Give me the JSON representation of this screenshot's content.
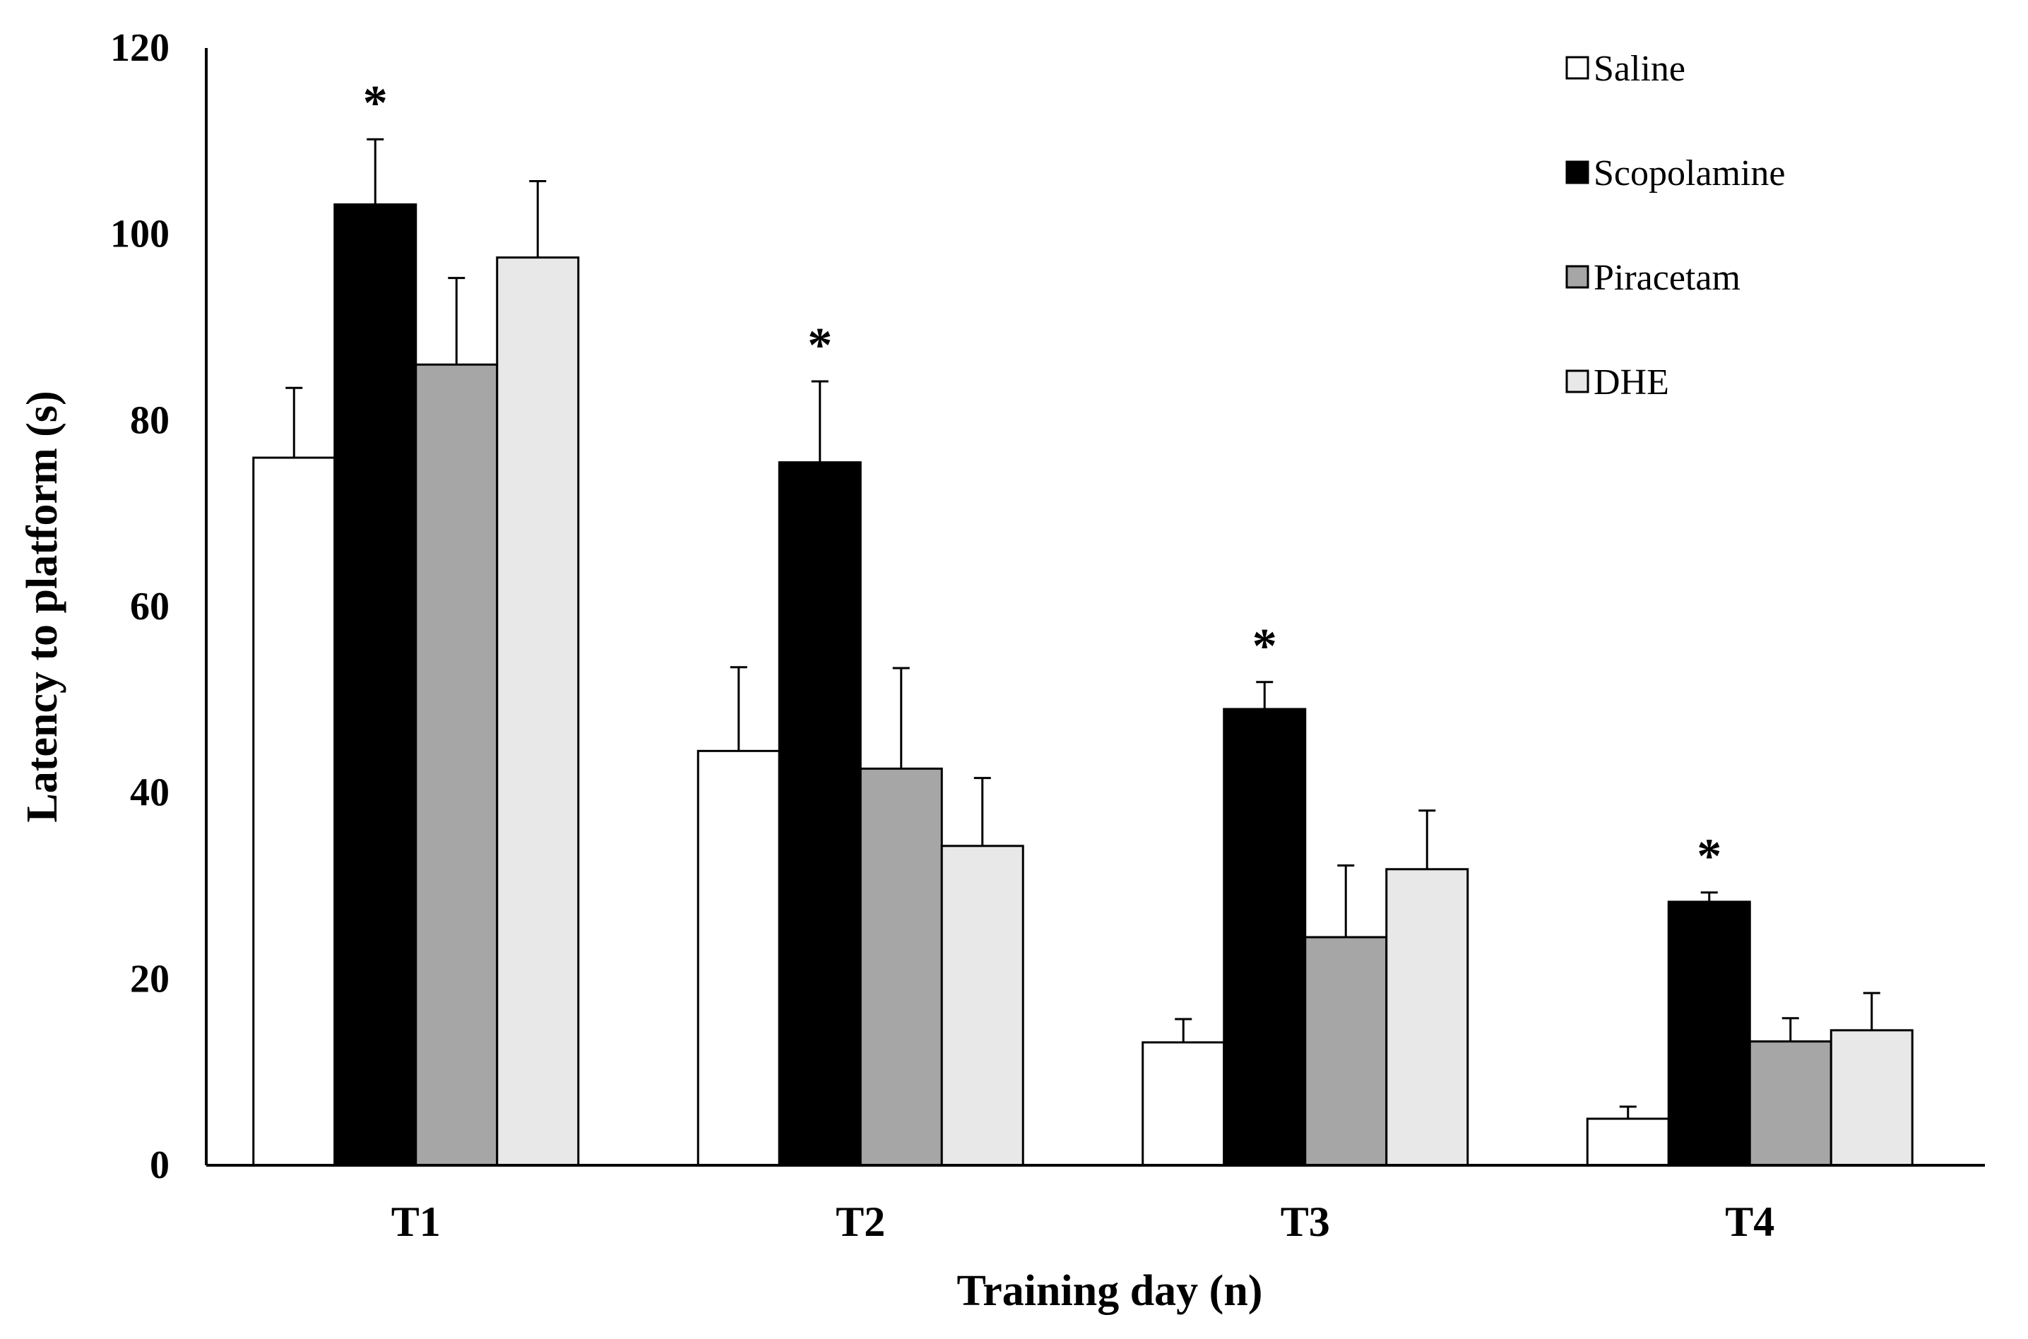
{
  "chart_data": {
    "type": "bar",
    "title": "",
    "xlabel": "Training day (n)",
    "ylabel": "Latency to platform (s)",
    "ylim": [
      0,
      120
    ],
    "yticks": [
      0,
      20,
      40,
      60,
      80,
      100,
      120
    ],
    "categories": [
      "T1",
      "T2",
      "T3",
      "T4"
    ],
    "series": [
      {
        "name": "Saline",
        "color": "#ffffff",
        "values": [
          76,
          44.5,
          13.2,
          5
        ],
        "errors": [
          7.5,
          9,
          2.5,
          1.3
        ]
      },
      {
        "name": "Scopolamine",
        "color": "#000000",
        "values": [
          103.2,
          75.5,
          49,
          28.3
        ],
        "errors": [
          7,
          8.7,
          2.9,
          1
        ]
      },
      {
        "name": "Piracetam",
        "color": "#a6a6a6",
        "values": [
          86,
          42.6,
          24.5,
          13.3
        ],
        "errors": [
          9.3,
          10.8,
          7.7,
          2.5
        ]
      },
      {
        "name": "DHE",
        "color": "#e8e8e8",
        "values": [
          97.5,
          34.3,
          31.8,
          14.5
        ],
        "errors": [
          8.2,
          7.3,
          6.3,
          4
        ]
      }
    ],
    "significance": {
      "label": "*",
      "series": "Scopolamine",
      "categories": [
        "T1",
        "T2",
        "T3",
        "T4"
      ]
    },
    "legend_position": "top-right"
  }
}
